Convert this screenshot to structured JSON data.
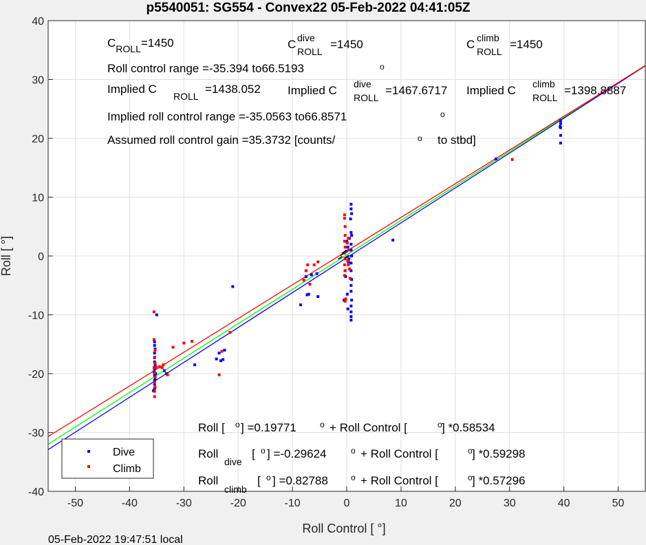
{
  "chart_data": {
    "type": "scatter",
    "title": "p5540051: SG554 - Convex22 05-Feb-2022 04:41:05Z",
    "xlabel": "Roll Control [   °]",
    "ylabel": "Roll [  °]",
    "xlim": [
      -55,
      55
    ],
    "ylim": [
      -40,
      40
    ],
    "xticks": [
      -50,
      -40,
      -30,
      -20,
      -10,
      0,
      10,
      20,
      30,
      40,
      50
    ],
    "yticks": [
      -40,
      -30,
      -20,
      -10,
      0,
      10,
      20,
      30,
      40
    ],
    "grid": true,
    "legend": {
      "position": "bottom-left",
      "entries": [
        "Dive",
        "Climb"
      ]
    },
    "series": [
      {
        "name": "Dive",
        "color": "#0000ff",
        "points": [
          [
            -35.4,
            -22.5
          ],
          [
            -35.4,
            -21.8
          ],
          [
            -35.4,
            -21.2
          ],
          [
            -35.3,
            -20.8
          ],
          [
            -35.4,
            -20.3
          ],
          [
            -35.5,
            -19.7
          ],
          [
            -35.4,
            -19.2
          ],
          [
            -35.3,
            -18.6
          ],
          [
            -35.4,
            -18.0
          ],
          [
            -35.4,
            -17.3
          ],
          [
            -35.4,
            -16.5
          ],
          [
            -35.3,
            -15.8
          ],
          [
            -35.4,
            -15.2
          ],
          [
            -35.4,
            -14.6
          ],
          [
            -35.0,
            -10.0
          ],
          [
            -35.6,
            -22.9
          ],
          [
            -35.2,
            -20.0
          ],
          [
            -33.6,
            -19.5
          ],
          [
            -33.2,
            -20.0
          ],
          [
            -28.0,
            -18.5
          ],
          [
            -24.0,
            -17.5
          ],
          [
            -23.5,
            -16.5
          ],
          [
            -23.2,
            -17.8
          ],
          [
            -22.8,
            -17.6
          ],
          [
            -22.5,
            -16.0
          ],
          [
            -21.0,
            -5.2
          ],
          [
            -8.5,
            -8.3
          ],
          [
            -7.5,
            -3.5
          ],
          [
            -7.3,
            -6.6
          ],
          [
            -7.0,
            -6.5
          ],
          [
            -6.5,
            -3.2
          ],
          [
            -5.5,
            -3.0
          ],
          [
            -5.3,
            -6.9
          ],
          [
            -0.5,
            -7.5
          ],
          [
            0.8,
            8.8
          ],
          [
            0.8,
            8.0
          ],
          [
            0.9,
            7.2
          ],
          [
            0.7,
            6.3
          ],
          [
            0.8,
            4.0
          ],
          [
            0.9,
            3.5
          ],
          [
            0.8,
            2.0
          ],
          [
            0.8,
            1.0
          ],
          [
            0.9,
            0.0
          ],
          [
            0.8,
            -1.2
          ],
          [
            0.8,
            -2.5
          ],
          [
            0.9,
            -4.0
          ],
          [
            0.8,
            -5.0
          ],
          [
            0.8,
            -6.0
          ],
          [
            0.9,
            -7.5
          ],
          [
            0.8,
            -8.5
          ],
          [
            0.8,
            -9.5
          ],
          [
            0.8,
            -10.3
          ],
          [
            0.8,
            -10.9
          ],
          [
            -0.3,
            -2.5
          ],
          [
            -0.2,
            -3.5
          ],
          [
            0.3,
            -1.0
          ],
          [
            0.2,
            1.5
          ],
          [
            -0.1,
            0.8
          ],
          [
            0.4,
            -0.5
          ],
          [
            0.0,
            2.5
          ],
          [
            0.5,
            3.0
          ],
          [
            0.1,
            -6.5
          ],
          [
            0.2,
            -9.0
          ],
          [
            8.5,
            2.7
          ],
          [
            39.4,
            23.0
          ],
          [
            39.4,
            22.5
          ],
          [
            39.3,
            22.0
          ],
          [
            39.4,
            21.8
          ],
          [
            39.4,
            20.5
          ],
          [
            39.4,
            19.2
          ],
          [
            27.5,
            16.5
          ]
        ]
      },
      {
        "name": "Climb",
        "color": "#ff0000",
        "points": [
          [
            -35.5,
            -9.5
          ],
          [
            -35.5,
            -14.2
          ],
          [
            -35.3,
            -16.0
          ],
          [
            -35.4,
            -17.2
          ],
          [
            -35.3,
            -18.2
          ],
          [
            -35.5,
            -19.0
          ],
          [
            -35.4,
            -19.8
          ],
          [
            -35.3,
            -20.6
          ],
          [
            -35.4,
            -21.5
          ],
          [
            -35.3,
            -22.3
          ],
          [
            -35.4,
            -23.0
          ],
          [
            -35.4,
            -23.9
          ],
          [
            -35.1,
            -18.9
          ],
          [
            -34.5,
            -18.8
          ],
          [
            -34.0,
            -19.0
          ],
          [
            -33.8,
            -18.5
          ],
          [
            -33.0,
            -20.2
          ],
          [
            -32.0,
            -15.5
          ],
          [
            -30.0,
            -14.8
          ],
          [
            -28.5,
            -14.5
          ],
          [
            -23.5,
            -20.2
          ],
          [
            -23.0,
            -16.2
          ],
          [
            -21.5,
            -13.0
          ],
          [
            -7.5,
            -2.5
          ],
          [
            -7.2,
            -1.5
          ],
          [
            -6.8,
            -4.8
          ],
          [
            -6.0,
            -1.5
          ],
          [
            -5.3,
            -1.0
          ],
          [
            -7.9,
            -4.1
          ],
          [
            -0.4,
            7.0
          ],
          [
            -0.4,
            6.4
          ],
          [
            -0.3,
            5.0
          ],
          [
            -0.3,
            3.5
          ],
          [
            -0.4,
            2.5
          ],
          [
            -0.3,
            1.5
          ],
          [
            -0.4,
            0.5
          ],
          [
            -0.3,
            -0.5
          ],
          [
            -0.4,
            -1.5
          ],
          [
            -0.3,
            -2.5
          ],
          [
            -0.4,
            -3.3
          ],
          [
            -0.3,
            -7.7
          ],
          [
            -0.2,
            -7.3
          ],
          [
            0.3,
            3.0
          ],
          [
            0.4,
            1.0
          ],
          [
            0.2,
            -0.8
          ],
          [
            0.5,
            -2.2
          ],
          [
            0.6,
            -3.8
          ],
          [
            0.1,
            2.2
          ],
          [
            0.3,
            -1.5
          ],
          [
            30.5,
            16.4
          ]
        ]
      }
    ],
    "fit_lines": [
      {
        "name": "all",
        "color": "#00ff00",
        "intercept": 0.19771,
        "slope": 0.58534
      },
      {
        "name": "dive",
        "color": "#0000ff",
        "intercept": -0.29624,
        "slope": 0.59298
      },
      {
        "name": "climb",
        "color": "#ff0000",
        "intercept": 0.82788,
        "slope": 0.57296
      }
    ],
    "black_marks": [
      [
        -1.2,
        -0.3
      ],
      [
        -0.8,
        0.3
      ],
      [
        0.0,
        -0.1
      ],
      [
        -0.5,
        0.7
      ]
    ],
    "annotations": {
      "c_roll": {
        "base": "C",
        "sub": "ROLL",
        "val": "=1450"
      },
      "c_roll_dive": {
        "base": "C",
        "sup": "dive",
        "sub": "ROLL",
        "val": "=1450"
      },
      "c_roll_climb": {
        "base": "C",
        "sup": "climb",
        "sub": "ROLL",
        "val": "=1450"
      },
      "roll_control_range": "Roll control range =-35.394 to66.5193",
      "implied_c_roll": {
        "pre": "Implied C",
        "sub": "ROLL",
        "val": "=1438.052"
      },
      "implied_c_roll_dive": {
        "pre": "Implied C",
        "sup": "dive",
        "sub": "ROLL",
        "val": "=1467.6717"
      },
      "implied_c_roll_climb": {
        "pre": "Implied C",
        "sup": "climb",
        "sub": "ROLL",
        "val": "=1398.8887"
      },
      "implied_range": "Implied roll control range =-35.0563 to66.8571",
      "gain_text": "Assumed roll control gain =35.3732 [counts/",
      "gain_suffix": "to stbd]",
      "fit_all": {
        "a": "Roll [  ",
        "b": "] =0.19771",
        "c": "+ Roll Control [",
        "d": "] *0.58534"
      },
      "fit_dive": {
        "a": "Roll",
        "sub": "dive",
        "b": "[  ",
        "c": "] =-0.29624",
        "d": "+ Roll Control [",
        "e": "] *0.59298"
      },
      "fit_climb": {
        "a": "Roll",
        "sub": "climb",
        "b": "[  ",
        "c": "] =0.82788",
        "d": "+ Roll Control [",
        "e": "] *0.57296"
      }
    },
    "footer": "05-Feb-2022 19:47:51 local"
  }
}
